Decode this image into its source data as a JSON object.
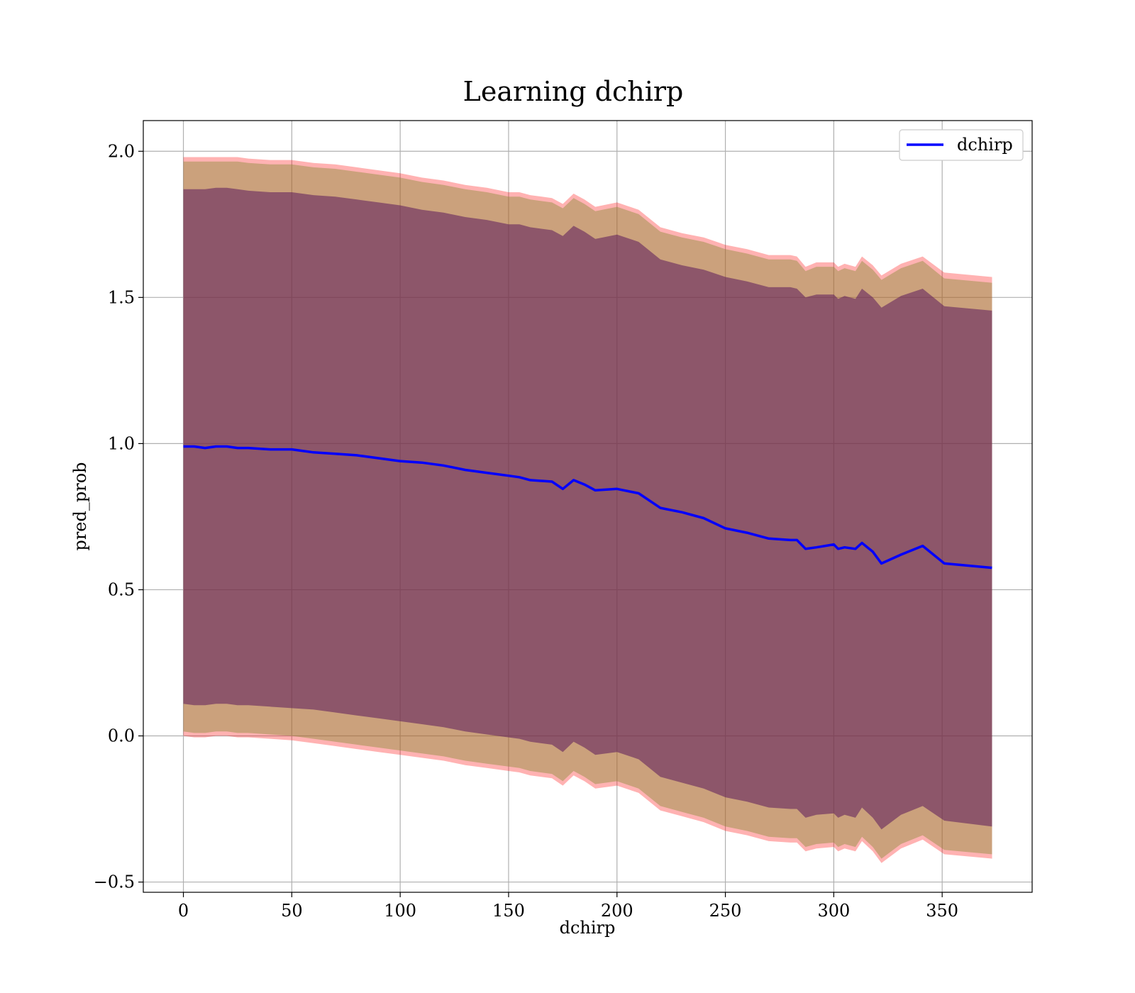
{
  "chart_data": {
    "type": "line",
    "title": "Learning dchirp",
    "xlabel": "dchirp",
    "ylabel": "pred_prob",
    "xlim": [
      -18.5,
      391.5
    ],
    "ylim": [
      -0.535,
      2.105
    ],
    "xticks": [
      0,
      50,
      100,
      150,
      200,
      250,
      300,
      350
    ],
    "xtick_labels": [
      "0",
      "50",
      "100",
      "150",
      "200",
      "250",
      "300",
      "350"
    ],
    "yticks": [
      -0.5,
      0.0,
      0.5,
      1.0,
      1.5,
      2.0
    ],
    "ytick_labels": [
      "−0.5",
      "0.0",
      "0.5",
      "1.0",
      "1.5",
      "2.0"
    ],
    "grid": true,
    "legend_position": "top-right",
    "colors": {
      "line": "#0000ff",
      "band_outer": "#ff0000",
      "band_middle": "#8b8b3a",
      "band_inner": "#5b1a5b"
    },
    "bands": [
      {
        "level": "outer",
        "opacity": 0.3
      },
      {
        "level": "middle",
        "opacity": 0.45
      },
      {
        "level": "inner",
        "opacity": 0.55
      }
    ],
    "series": [
      {
        "name": "dchirp",
        "x": [
          0,
          5,
          10,
          15,
          20,
          25,
          30,
          40,
          50,
          60,
          70,
          80,
          90,
          100,
          110,
          120,
          130,
          140,
          150,
          155,
          160,
          170,
          175,
          180,
          185,
          190,
          200,
          210,
          220,
          230,
          240,
          250,
          260,
          270,
          280,
          283,
          287,
          292,
          300,
          302,
          305,
          310,
          313,
          318,
          322,
          331,
          341,
          351,
          373
        ],
        "y": [
          0.99,
          0.99,
          0.985,
          0.99,
          0.99,
          0.985,
          0.985,
          0.98,
          0.98,
          0.97,
          0.965,
          0.96,
          0.95,
          0.94,
          0.935,
          0.925,
          0.91,
          0.9,
          0.89,
          0.885,
          0.875,
          0.87,
          0.845,
          0.875,
          0.86,
          0.84,
          0.845,
          0.83,
          0.78,
          0.765,
          0.745,
          0.71,
          0.695,
          0.675,
          0.67,
          0.67,
          0.64,
          0.645,
          0.655,
          0.64,
          0.645,
          0.64,
          0.66,
          0.63,
          0.59,
          0.62,
          0.65,
          0.59,
          0.575
        ],
        "upper_outer": [
          1.98,
          1.98,
          1.98,
          1.98,
          1.98,
          1.98,
          1.975,
          1.97,
          1.97,
          1.96,
          1.955,
          1.945,
          1.935,
          1.925,
          1.91,
          1.9,
          1.885,
          1.875,
          1.86,
          1.86,
          1.85,
          1.84,
          1.82,
          1.855,
          1.835,
          1.81,
          1.825,
          1.8,
          1.74,
          1.72,
          1.705,
          1.68,
          1.665,
          1.645,
          1.645,
          1.64,
          1.605,
          1.62,
          1.62,
          1.605,
          1.615,
          1.605,
          1.64,
          1.61,
          1.575,
          1.615,
          1.64,
          1.585,
          1.57
        ],
        "upper_middle": [
          1.965,
          1.965,
          1.965,
          1.965,
          1.965,
          1.965,
          1.96,
          1.955,
          1.955,
          1.945,
          1.94,
          1.93,
          1.92,
          1.91,
          1.895,
          1.885,
          1.87,
          1.86,
          1.845,
          1.845,
          1.835,
          1.825,
          1.805,
          1.84,
          1.82,
          1.795,
          1.81,
          1.785,
          1.725,
          1.705,
          1.69,
          1.665,
          1.65,
          1.63,
          1.63,
          1.625,
          1.59,
          1.605,
          1.605,
          1.59,
          1.6,
          1.59,
          1.625,
          1.595,
          1.56,
          1.6,
          1.625,
          1.565,
          1.55
        ],
        "upper_inner": [
          1.87,
          1.87,
          1.87,
          1.875,
          1.875,
          1.87,
          1.865,
          1.86,
          1.86,
          1.85,
          1.845,
          1.835,
          1.825,
          1.815,
          1.8,
          1.79,
          1.775,
          1.765,
          1.75,
          1.75,
          1.74,
          1.73,
          1.71,
          1.745,
          1.725,
          1.7,
          1.715,
          1.69,
          1.63,
          1.61,
          1.595,
          1.57,
          1.555,
          1.535,
          1.535,
          1.53,
          1.5,
          1.51,
          1.51,
          1.495,
          1.505,
          1.495,
          1.53,
          1.5,
          1.465,
          1.505,
          1.53,
          1.47,
          1.455
        ],
        "lower_inner": [
          0.11,
          0.105,
          0.105,
          0.11,
          0.11,
          0.105,
          0.105,
          0.1,
          0.095,
          0.09,
          0.08,
          0.07,
          0.06,
          0.05,
          0.04,
          0.03,
          0.015,
          0.005,
          -0.005,
          -0.01,
          -0.02,
          -0.03,
          -0.055,
          -0.02,
          -0.04,
          -0.065,
          -0.055,
          -0.08,
          -0.14,
          -0.16,
          -0.18,
          -0.21,
          -0.225,
          -0.245,
          -0.25,
          -0.25,
          -0.28,
          -0.27,
          -0.265,
          -0.28,
          -0.27,
          -0.28,
          -0.245,
          -0.28,
          -0.32,
          -0.27,
          -0.24,
          -0.29,
          -0.31
        ],
        "lower_middle": [
          0.015,
          0.01,
          0.01,
          0.015,
          0.015,
          0.01,
          0.01,
          0.005,
          0.0,
          -0.01,
          -0.02,
          -0.03,
          -0.04,
          -0.05,
          -0.06,
          -0.07,
          -0.085,
          -0.095,
          -0.105,
          -0.11,
          -0.12,
          -0.13,
          -0.155,
          -0.12,
          -0.14,
          -0.165,
          -0.155,
          -0.18,
          -0.24,
          -0.26,
          -0.28,
          -0.31,
          -0.325,
          -0.345,
          -0.35,
          -0.35,
          -0.38,
          -0.37,
          -0.365,
          -0.38,
          -0.37,
          -0.38,
          -0.345,
          -0.38,
          -0.42,
          -0.37,
          -0.34,
          -0.39,
          -0.405
        ],
        "lower_outer": [
          0.0,
          -0.005,
          -0.005,
          0.0,
          0.0,
          -0.005,
          -0.005,
          -0.01,
          -0.015,
          -0.025,
          -0.035,
          -0.045,
          -0.055,
          -0.065,
          -0.075,
          -0.085,
          -0.1,
          -0.11,
          -0.12,
          -0.125,
          -0.135,
          -0.145,
          -0.17,
          -0.135,
          -0.155,
          -0.18,
          -0.17,
          -0.195,
          -0.255,
          -0.275,
          -0.295,
          -0.325,
          -0.34,
          -0.36,
          -0.365,
          -0.365,
          -0.395,
          -0.385,
          -0.38,
          -0.395,
          -0.385,
          -0.395,
          -0.36,
          -0.395,
          -0.435,
          -0.385,
          -0.355,
          -0.405,
          -0.42
        ]
      }
    ]
  }
}
